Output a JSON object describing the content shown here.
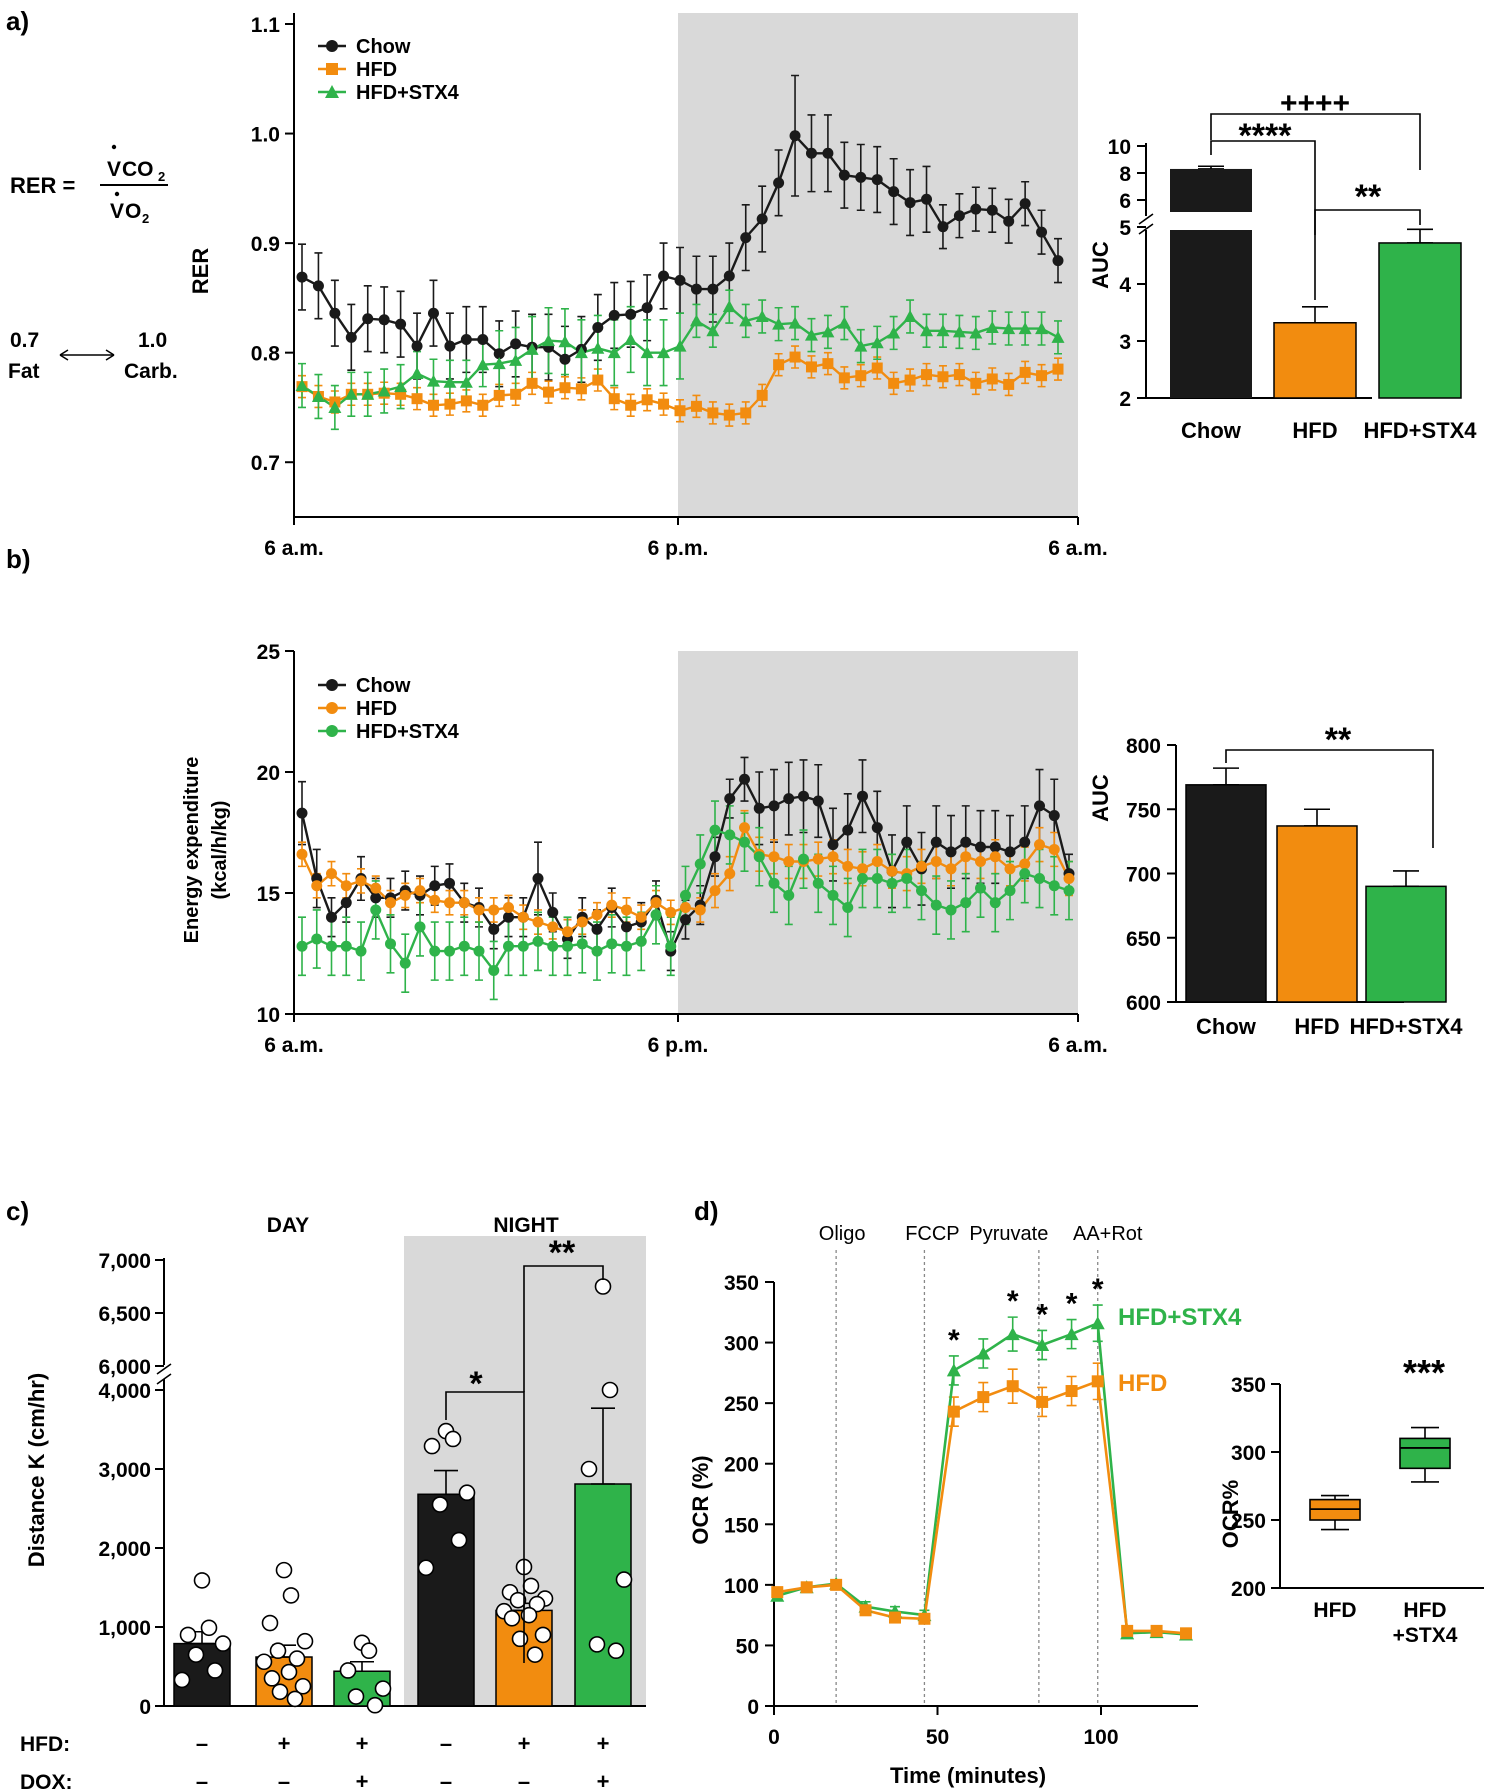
{
  "panels": {
    "a": "a)",
    "b": "b)",
    "c": "c)",
    "d": "d)"
  },
  "colors": {
    "chow": "#1a1a1a",
    "hfd": "#f28c0f",
    "stx4": "#2fb34a",
    "night": "#d9d9d9"
  },
  "rer_text": {
    "lhs": "RER =",
    "num_v": "V",
    "num_co": "CO",
    "sub2": "2",
    "den_v": "V",
    "den_o": "O",
    "sub2b": "2",
    "fat_val": "0.7",
    "fat": "Fat",
    "carb_val": "1.0",
    "carb": "Carb."
  },
  "chart_data": [
    {
      "id": "a_line",
      "type": "line",
      "ylabel": "RER",
      "ylim": [
        0.65,
        1.1
      ],
      "yticks": [
        "0.7",
        "0.8",
        "0.9",
        "1.0",
        "1.1"
      ],
      "xticks": [
        "6 a.m.",
        "6 p.m.",
        "6 a.m."
      ],
      "legend": [
        "Chow",
        "HFD",
        "HFD+STX4"
      ],
      "series": [
        {
          "name": "Chow",
          "marker": "circle",
          "values": [
            0.869,
            0.861,
            0.836,
            0.814,
            0.831,
            0.83,
            0.826,
            0.806,
            0.836,
            0.806,
            0.812,
            0.812,
            0.799,
            0.808,
            0.805,
            0.805,
            0.794,
            0.803,
            0.823,
            0.834,
            0.835,
            0.841,
            0.87,
            0.866,
            0.858,
            0.858,
            0.87,
            0.905,
            0.922,
            0.955,
            0.998,
            0.982,
            0.982,
            0.962,
            0.96,
            0.958,
            0.947,
            0.937,
            0.94,
            0.915,
            0.925,
            0.931,
            0.93,
            0.92,
            0.936,
            0.91,
            0.884
          ],
          "err": [
            0.03,
            0.03,
            0.03,
            0.03,
            0.03,
            0.03,
            0.03,
            0.03,
            0.03,
            0.03,
            0.03,
            0.03,
            0.03,
            0.03,
            0.03,
            0.03,
            0.03,
            0.03,
            0.03,
            0.03,
            0.03,
            0.03,
            0.03,
            0.03,
            0.03,
            0.03,
            0.03,
            0.03,
            0.03,
            0.03,
            0.055,
            0.035,
            0.035,
            0.03,
            0.03,
            0.03,
            0.03,
            0.03,
            0.03,
            0.02,
            0.02,
            0.02,
            0.02,
            0.02,
            0.02,
            0.02,
            0.02
          ]
        },
        {
          "name": "HFD",
          "marker": "square",
          "values": [
            0.769,
            0.76,
            0.755,
            0.762,
            0.762,
            0.763,
            0.762,
            0.758,
            0.752,
            0.753,
            0.756,
            0.752,
            0.761,
            0.762,
            0.772,
            0.764,
            0.768,
            0.767,
            0.775,
            0.758,
            0.752,
            0.757,
            0.753,
            0.747,
            0.751,
            0.745,
            0.743,
            0.745,
            0.761,
            0.789,
            0.796,
            0.787,
            0.79,
            0.777,
            0.779,
            0.786,
            0.772,
            0.775,
            0.78,
            0.778,
            0.78,
            0.772,
            0.776,
            0.771,
            0.782,
            0.779,
            0.785
          ],
          "err": [
            0.01,
            0.01,
            0.01,
            0.01,
            0.01,
            0.01,
            0.01,
            0.01,
            0.01,
            0.01,
            0.01,
            0.01,
            0.01,
            0.01,
            0.01,
            0.01,
            0.01,
            0.01,
            0.01,
            0.01,
            0.01,
            0.01,
            0.01,
            0.01,
            0.01,
            0.01,
            0.01,
            0.01,
            0.01,
            0.01,
            0.01,
            0.01,
            0.01,
            0.01,
            0.01,
            0.01,
            0.01,
            0.01,
            0.01,
            0.01,
            0.01,
            0.01,
            0.01,
            0.01,
            0.01,
            0.01,
            0.01
          ]
        },
        {
          "name": "HFD+STX4",
          "marker": "triangle",
          "values": [
            0.77,
            0.76,
            0.75,
            0.762,
            0.762,
            0.765,
            0.769,
            0.781,
            0.774,
            0.773,
            0.773,
            0.789,
            0.79,
            0.793,
            0.803,
            0.811,
            0.81,
            0.8,
            0.804,
            0.8,
            0.812,
            0.8,
            0.8,
            0.806,
            0.829,
            0.82,
            0.842,
            0.829,
            0.833,
            0.826,
            0.827,
            0.816,
            0.819,
            0.827,
            0.806,
            0.809,
            0.818,
            0.833,
            0.82,
            0.82,
            0.819,
            0.818,
            0.823,
            0.822,
            0.822,
            0.822,
            0.814
          ],
          "err": [
            0.02,
            0.02,
            0.02,
            0.02,
            0.02,
            0.02,
            0.02,
            0.02,
            0.02,
            0.02,
            0.02,
            0.02,
            0.03,
            0.03,
            0.03,
            0.03,
            0.03,
            0.03,
            0.03,
            0.03,
            0.03,
            0.03,
            0.03,
            0.03,
            0.015,
            0.015,
            0.015,
            0.015,
            0.015,
            0.015,
            0.015,
            0.015,
            0.015,
            0.015,
            0.015,
            0.015,
            0.015,
            0.015,
            0.015,
            0.015,
            0.015,
            0.015,
            0.015,
            0.015,
            0.015,
            0.015,
            0.015
          ]
        }
      ]
    },
    {
      "id": "a_bar",
      "type": "bar",
      "ylabel": "AUC",
      "yticks_low": [
        "2",
        "3",
        "4",
        "5"
      ],
      "yticks_high": [
        "6",
        "8",
        "10"
      ],
      "categories": [
        "Chow",
        "HFD",
        "HFD+STX4"
      ],
      "values": [
        8.3,
        3.32,
        4.72
      ],
      "err": [
        0.2,
        0.28,
        0.24
      ],
      "significance": [
        "++++",
        "****",
        "**"
      ]
    },
    {
      "id": "b_line",
      "type": "line",
      "ylabel": [
        "Energy expenditure",
        "(kcal/h/kg)"
      ],
      "ylim": [
        10,
        25
      ],
      "yticks": [
        "10",
        "15",
        "20",
        "25"
      ],
      "xticks": [
        "6 a.m.",
        "6 p.m.",
        "6 a.m."
      ],
      "legend": [
        "Chow",
        "HFD",
        "HFD+STX4"
      ],
      "series": [
        {
          "name": "Chow",
          "marker": "circle",
          "values": [
            18.3,
            15.6,
            14.0,
            14.6,
            15.6,
            14.8,
            14.8,
            15.1,
            14.9,
            15.3,
            15.4,
            14.6,
            14.4,
            13.5,
            14.0,
            14.0,
            15.6,
            14.2,
            13.1,
            14.0,
            13.5,
            14.4,
            13.6,
            13.8,
            14.7,
            12.6,
            13.9,
            14.5,
            16.5,
            18.9,
            19.7,
            18.5,
            18.6,
            18.9,
            19.0,
            18.8,
            17.0,
            17.6,
            19.0,
            17.7,
            15.9,
            17.1,
            16.0,
            17.1,
            16.7,
            17.1,
            16.9,
            16.9,
            16.7,
            17.1,
            18.6,
            18.2,
            15.8
          ],
          "err": [
            1.3,
            1.2,
            0.8,
            0.8,
            0.9,
            0.8,
            0.8,
            0.8,
            0.8,
            0.8,
            0.8,
            0.8,
            0.8,
            0.8,
            0.8,
            0.8,
            1.5,
            0.8,
            0.8,
            0.8,
            0.8,
            0.8,
            0.8,
            0.8,
            0.8,
            0.8,
            0.8,
            0.8,
            0.8,
            0.8,
            0.9,
            1.5,
            1.5,
            1.5,
            1.5,
            1.5,
            1.5,
            1.5,
            1.5,
            1.5,
            1.5,
            1.5,
            1.5,
            1.5,
            1.5,
            1.5,
            1.5,
            1.5,
            1.5,
            1.5,
            1.5,
            1.5,
            0.8
          ]
        },
        {
          "name": "HFD",
          "marker": "circle",
          "values": [
            16.6,
            15.3,
            15.8,
            15.3,
            15.5,
            15.2,
            14.6,
            14.9,
            15.1,
            14.7,
            14.6,
            14.6,
            14.3,
            14.3,
            14.4,
            14.0,
            13.8,
            13.6,
            13.4,
            13.8,
            14.1,
            14.5,
            14.3,
            14.0,
            14.6,
            14.2,
            14.4,
            14.3,
            15.1,
            15.8,
            17.7,
            16.6,
            16.5,
            16.3,
            16.3,
            16.4,
            16.5,
            16.1,
            16.0,
            16.3,
            15.9,
            15.8,
            16.1,
            16.3,
            16.0,
            16.5,
            16.3,
            16.5,
            16.0,
            16.2,
            17.0,
            16.8,
            15.6
          ],
          "err": [
            0.5,
            0.5,
            0.5,
            0.5,
            0.5,
            0.5,
            0.5,
            0.5,
            0.5,
            0.5,
            0.5,
            0.5,
            0.5,
            0.5,
            0.5,
            0.5,
            0.5,
            0.5,
            0.5,
            0.5,
            0.5,
            0.5,
            0.5,
            0.5,
            0.5,
            0.5,
            0.5,
            0.5,
            0.7,
            0.7,
            0.7,
            0.7,
            0.7,
            0.7,
            0.7,
            0.7,
            0.7,
            0.7,
            0.7,
            0.7,
            0.7,
            0.7,
            0.7,
            0.7,
            0.7,
            0.7,
            0.7,
            0.7,
            0.7,
            0.7,
            0.7,
            0.7,
            0.7
          ]
        },
        {
          "name": "HFD+STX4",
          "marker": "circle",
          "values": [
            12.8,
            13.1,
            12.8,
            12.8,
            12.6,
            14.3,
            12.9,
            12.1,
            13.6,
            12.6,
            12.6,
            12.8,
            12.6,
            11.8,
            12.8,
            12.8,
            13.0,
            12.8,
            12.8,
            12.9,
            12.6,
            12.9,
            12.8,
            13.0,
            14.1,
            12.8,
            14.9,
            16.2,
            17.6,
            17.4,
            17.1,
            16.5,
            15.4,
            14.9,
            16.4,
            15.4,
            14.9,
            14.4,
            15.6,
            15.6,
            15.4,
            15.6,
            15.1,
            14.5,
            14.3,
            14.6,
            15.2,
            14.6,
            15.1,
            15.8,
            15.6,
            15.3,
            15.1
          ],
          "err": [
            1.2,
            1.2,
            1.2,
            1.2,
            1.2,
            1.2,
            1.2,
            1.2,
            1.2,
            1.2,
            1.2,
            1.2,
            1.2,
            1.2,
            1.2,
            1.2,
            1.2,
            1.2,
            1.2,
            1.2,
            1.2,
            1.2,
            1.2,
            1.2,
            1.2,
            1.2,
            1.2,
            1.2,
            1.2,
            1.2,
            1.2,
            1.2,
            1.2,
            1.2,
            1.2,
            1.2,
            1.2,
            1.2,
            1.2,
            1.2,
            1.2,
            1.2,
            1.2,
            1.2,
            1.2,
            1.2,
            1.2,
            1.2,
            1.2,
            1.2,
            1.2,
            1.2,
            1.2
          ]
        }
      ]
    },
    {
      "id": "b_bar",
      "type": "bar",
      "ylabel": "AUC",
      "ylim": [
        600,
        800
      ],
      "yticks": [
        "600",
        "650",
        "700",
        "750",
        "800"
      ],
      "categories": [
        "Chow",
        "HFD",
        "HFD+STX4"
      ],
      "values": [
        769,
        737,
        690
      ],
      "err": [
        13,
        13,
        12
      ],
      "significance": [
        "**"
      ]
    },
    {
      "id": "c_scatter_bar",
      "type": "bar",
      "ylabel": "Distance K (cm/hr)",
      "yticks_low": [
        "0",
        "1,000",
        "2,000",
        "3,000",
        "4,000"
      ],
      "yticks_high": [
        "6,000",
        "6,500",
        "7,000"
      ],
      "period_labels": [
        "DAY",
        "NIGHT"
      ],
      "row_labels": [
        "HFD:",
        "DOX:"
      ],
      "hfd_signs": [
        "–",
        "+",
        "+",
        "–",
        "+",
        "+"
      ],
      "dox_signs": [
        "–",
        "–",
        "+",
        "–",
        "–",
        "+"
      ],
      "groups": [
        {
          "group": "day-chow",
          "mean": 790,
          "sem": 150,
          "points": [
            1590,
            990,
            900,
            790,
            650,
            450,
            330
          ]
        },
        {
          "group": "day-hfd",
          "mean": 620,
          "sem": 150,
          "points": [
            1720,
            1400,
            1050,
            820,
            700,
            600,
            560,
            430,
            350,
            250,
            180,
            90
          ]
        },
        {
          "group": "day-stx4",
          "mean": 440,
          "sem": 120,
          "points": [
            800,
            700,
            450,
            220,
            120,
            10
          ]
        },
        {
          "group": "night-chow",
          "mean": 2680,
          "sem": 300,
          "points": [
            3480,
            3380,
            3290,
            2700,
            2550,
            2100,
            1750
          ]
        },
        {
          "group": "night-hfd",
          "mean": 1210,
          "sem": 90,
          "points": [
            1760,
            1520,
            1440,
            1360,
            1340,
            1290,
            1200,
            1150,
            1110,
            900,
            850,
            650
          ]
        },
        {
          "group": "night-stx4",
          "mean": 2810,
          "sem": 960,
          "points": [
            6750,
            4000,
            3000,
            1600,
            780,
            700
          ]
        }
      ],
      "significance": [
        "*",
        "**"
      ]
    },
    {
      "id": "d_line",
      "type": "line",
      "ylabel": "OCR (%)",
      "xlabel": "Time (minutes)",
      "ylim": [
        0,
        350
      ],
      "xlim": [
        0,
        130
      ],
      "yticks": [
        "0",
        "50",
        "100",
        "150",
        "200",
        "250",
        "300",
        "350"
      ],
      "xticks": [
        "0",
        "50",
        "100"
      ],
      "injections": [
        {
          "label": "Oligo",
          "x": 19
        },
        {
          "label": "FCCP",
          "x": 46
        },
        {
          "label": "Pyruvate",
          "x": 81
        },
        {
          "label": "AA+Rot",
          "x": 99
        }
      ],
      "x": [
        1,
        10,
        19,
        28,
        37,
        46,
        55,
        64,
        73,
        82,
        91,
        99,
        108,
        117,
        126
      ],
      "series": [
        {
          "name": "HFD+STX4",
          "marker": "triangle",
          "values": [
            91,
            98,
            101,
            82,
            78,
            75,
            277,
            291,
            307,
            298,
            307,
            316,
            60,
            61,
            59
          ],
          "err": [
            3,
            3,
            3,
            4,
            4,
            4,
            12,
            12,
            14,
            12,
            12,
            15,
            3,
            3,
            3
          ]
        },
        {
          "name": "HFD",
          "marker": "square",
          "values": [
            94,
            98,
            100,
            79,
            73,
            72,
            243,
            255,
            264,
            251,
            260,
            268,
            62,
            62,
            60
          ],
          "err": [
            3,
            3,
            3,
            4,
            4,
            4,
            12,
            12,
            14,
            12,
            12,
            15,
            3,
            3,
            3
          ]
        }
      ],
      "significance": [
        "*",
        "*",
        "*",
        "*",
        "*"
      ],
      "series_labels": [
        "HFD+STX4",
        "HFD"
      ]
    },
    {
      "id": "d_box",
      "type": "box",
      "ylabel": "OCR%",
      "ylim": [
        200,
        350
      ],
      "yticks": [
        "200",
        "250",
        "300",
        "350"
      ],
      "categories": [
        "HFD",
        "HFD",
        "+STX4"
      ],
      "boxes": [
        {
          "name": "HFD",
          "min": 243,
          "q1": 250,
          "median": 258,
          "q3": 265,
          "max": 268
        },
        {
          "name": "HFD+STX4",
          "min": 278,
          "q1": 288,
          "median": 303,
          "q3": 310,
          "max": 318
        }
      ],
      "significance": "***"
    }
  ]
}
